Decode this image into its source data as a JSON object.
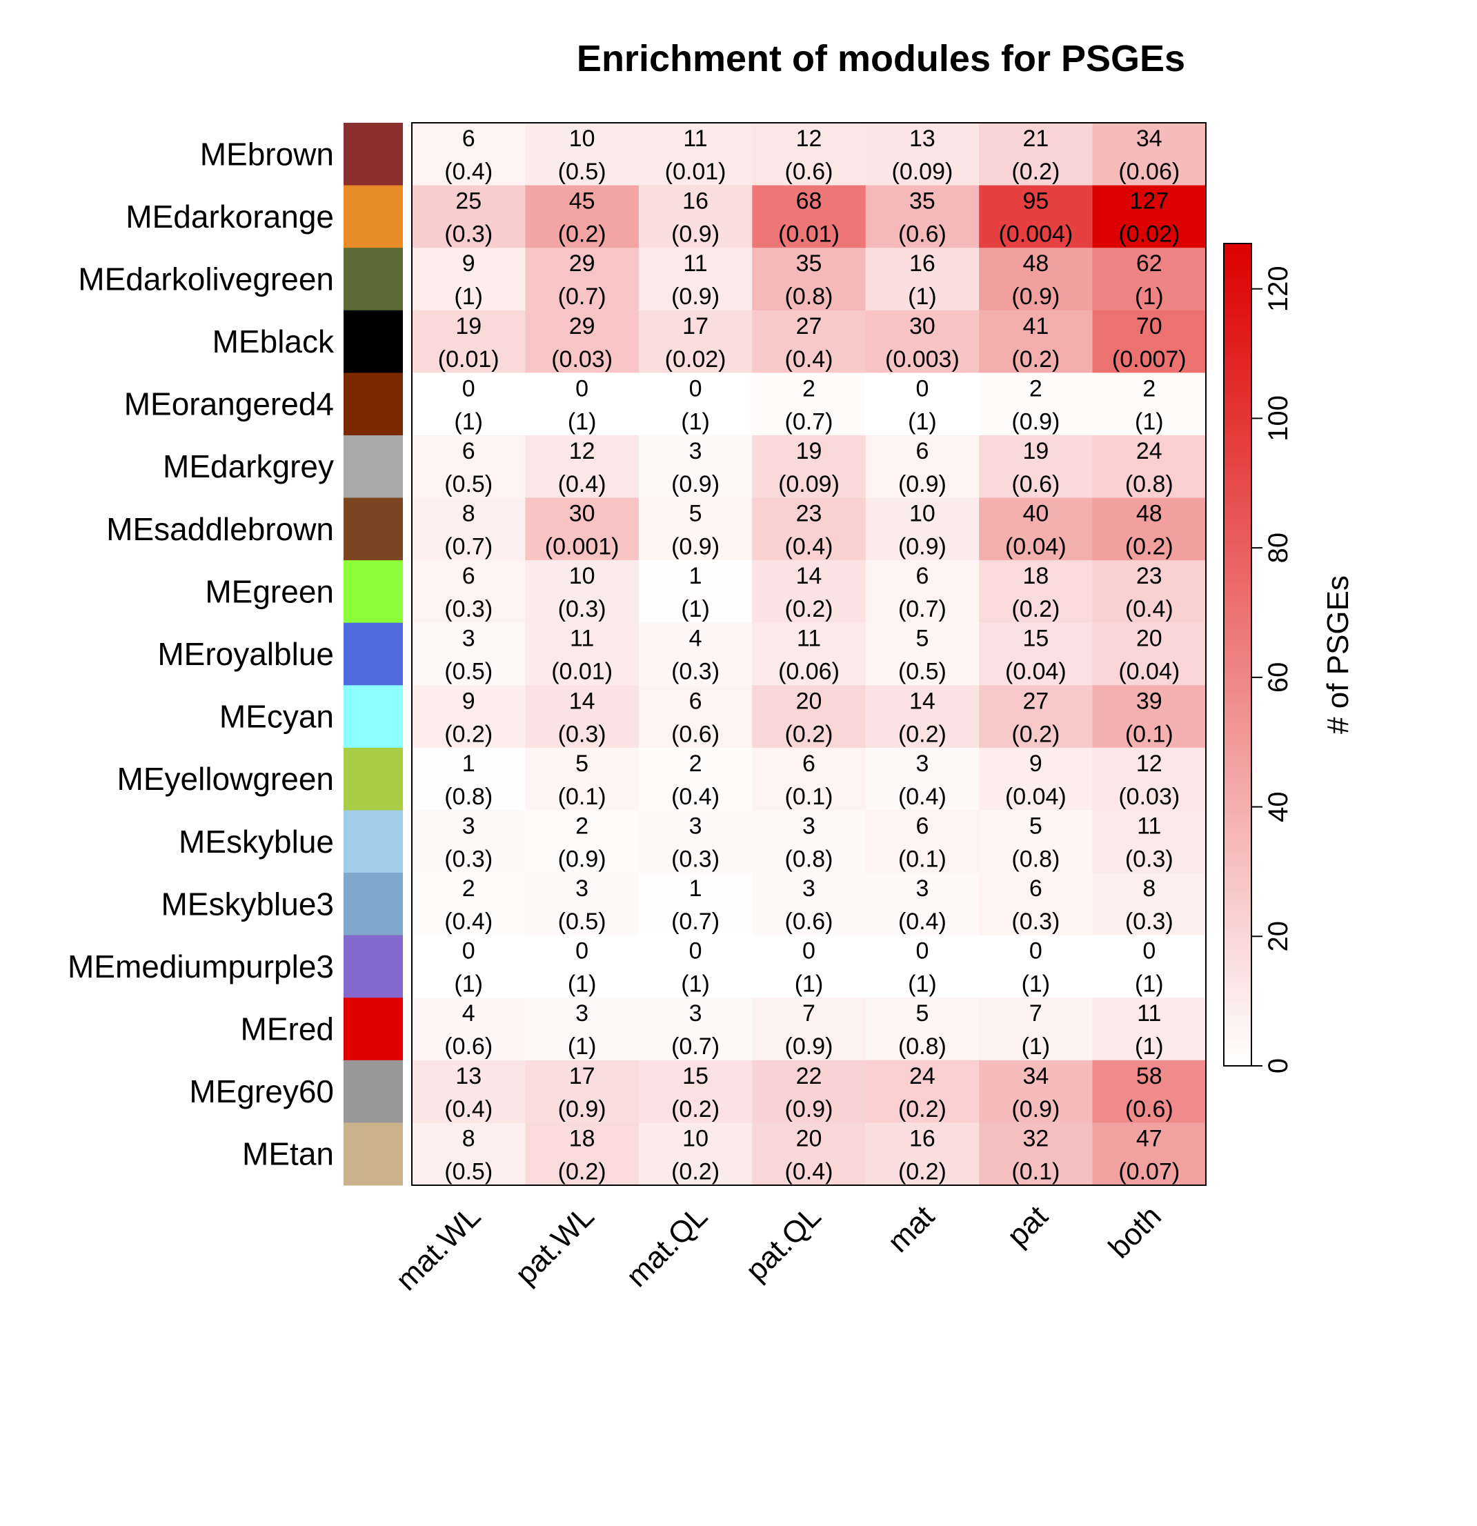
{
  "chart_data": {
    "type": "heatmap",
    "title": "Enrichment of modules for PSGEs",
    "columns": [
      "mat.WL",
      "pat.WL",
      "mat.QL",
      "pat.QL",
      "mat",
      "pat",
      "both"
    ],
    "rows": [
      {
        "name": "MEbrown",
        "color": "#8B2E2E",
        "counts": [
          6,
          10,
          11,
          12,
          13,
          21,
          34
        ],
        "pvalues": [
          "(0.4)",
          "(0.5)",
          "(0.01)",
          "(0.6)",
          "(0.09)",
          "(0.2)",
          "(0.06)"
        ]
      },
      {
        "name": "MEdarkorange",
        "color": "#E88B26",
        "counts": [
          25,
          45,
          16,
          68,
          35,
          95,
          127
        ],
        "pvalues": [
          "(0.3)",
          "(0.2)",
          "(0.9)",
          "(0.01)",
          "(0.6)",
          "(0.004)",
          "(0.02)"
        ]
      },
      {
        "name": "MEdarkolivegreen",
        "color": "#5A6B35",
        "counts": [
          9,
          29,
          11,
          35,
          16,
          48,
          62
        ],
        "pvalues": [
          "(1)",
          "(0.7)",
          "(0.9)",
          "(0.8)",
          "(1)",
          "(0.9)",
          "(1)"
        ]
      },
      {
        "name": "MEblack",
        "color": "#000000",
        "counts": [
          19,
          29,
          17,
          27,
          30,
          41,
          70
        ],
        "pvalues": [
          "(0.01)",
          "(0.03)",
          "(0.02)",
          "(0.4)",
          "(0.003)",
          "(0.2)",
          "(0.007)"
        ]
      },
      {
        "name": "MEorangered4",
        "color": "#7A2900",
        "counts": [
          0,
          0,
          0,
          2,
          0,
          2,
          2
        ],
        "pvalues": [
          "(1)",
          "(1)",
          "(1)",
          "(0.7)",
          "(1)",
          "(0.9)",
          "(1)"
        ]
      },
      {
        "name": "MEdarkgrey",
        "color": "#A8A8A8",
        "counts": [
          6,
          12,
          3,
          19,
          6,
          19,
          24
        ],
        "pvalues": [
          "(0.5)",
          "(0.4)",
          "(0.9)",
          "(0.09)",
          "(0.9)",
          "(0.6)",
          "(0.8)"
        ]
      },
      {
        "name": "MEsaddlebrown",
        "color": "#7A4520",
        "counts": [
          8,
          30,
          5,
          23,
          10,
          40,
          48
        ],
        "pvalues": [
          "(0.7)",
          "(0.001)",
          "(0.9)",
          "(0.4)",
          "(0.9)",
          "(0.04)",
          "(0.2)"
        ]
      },
      {
        "name": "MEgreen",
        "color": "#8CFF3A",
        "counts": [
          6,
          10,
          1,
          14,
          6,
          18,
          23
        ],
        "pvalues": [
          "(0.3)",
          "(0.3)",
          "(1)",
          "(0.2)",
          "(0.7)",
          "(0.2)",
          "(0.4)"
        ]
      },
      {
        "name": "MEroyalblue",
        "color": "#5069DD",
        "counts": [
          3,
          11,
          4,
          11,
          5,
          15,
          20
        ],
        "pvalues": [
          "(0.5)",
          "(0.01)",
          "(0.3)",
          "(0.06)",
          "(0.5)",
          "(0.04)",
          "(0.04)"
        ]
      },
      {
        "name": "MEcyan",
        "color": "#8CFFFF",
        "counts": [
          9,
          14,
          6,
          20,
          14,
          27,
          39
        ],
        "pvalues": [
          "(0.2)",
          "(0.3)",
          "(0.6)",
          "(0.2)",
          "(0.2)",
          "(0.2)",
          "(0.1)"
        ]
      },
      {
        "name": "MEyellowgreen",
        "color": "#A8CD45",
        "counts": [
          1,
          5,
          2,
          6,
          3,
          9,
          12
        ],
        "pvalues": [
          "(0.8)",
          "(0.1)",
          "(0.4)",
          "(0.1)",
          "(0.4)",
          "(0.04)",
          "(0.03)"
        ]
      },
      {
        "name": "MEskyblue",
        "color": "#A0CDE8",
        "counts": [
          3,
          2,
          3,
          3,
          6,
          5,
          11
        ],
        "pvalues": [
          "(0.3)",
          "(0.9)",
          "(0.3)",
          "(0.8)",
          "(0.1)",
          "(0.8)",
          "(0.3)"
        ]
      },
      {
        "name": "MEskyblue3",
        "color": "#7FA6CB",
        "counts": [
          2,
          3,
          1,
          3,
          3,
          6,
          8
        ],
        "pvalues": [
          "(0.4)",
          "(0.5)",
          "(0.7)",
          "(0.6)",
          "(0.4)",
          "(0.3)",
          "(0.3)"
        ]
      },
      {
        "name": "MEmediumpurple3",
        "color": "#8468CB",
        "counts": [
          0,
          0,
          0,
          0,
          0,
          0,
          0
        ],
        "pvalues": [
          "(1)",
          "(1)",
          "(1)",
          "(1)",
          "(1)",
          "(1)",
          "(1)"
        ]
      },
      {
        "name": "MEred",
        "color": "#E00000",
        "counts": [
          4,
          3,
          3,
          7,
          5,
          7,
          11
        ],
        "pvalues": [
          "(0.6)",
          "(1)",
          "(0.7)",
          "(0.9)",
          "(0.8)",
          "(1)",
          "(1)"
        ]
      },
      {
        "name": "MEgrey60",
        "color": "#999999",
        "counts": [
          13,
          17,
          15,
          22,
          24,
          34,
          58
        ],
        "pvalues": [
          "(0.4)",
          "(0.9)",
          "(0.2)",
          "(0.9)",
          "(0.2)",
          "(0.9)",
          "(0.6)"
        ]
      },
      {
        "name": "MEtan",
        "color": "#C9B28C",
        "counts": [
          8,
          18,
          10,
          20,
          16,
          32,
          47
        ],
        "pvalues": [
          "(0.5)",
          "(0.2)",
          "(0.2)",
          "(0.4)",
          "(0.2)",
          "(0.1)",
          "(0.07)"
        ]
      }
    ],
    "colorbar": {
      "title": "# of PSGEs",
      "ticks": [
        0,
        20,
        40,
        60,
        80,
        100,
        120
      ],
      "range": [
        0,
        127
      ],
      "low_color": "#FFFFFF",
      "high_color": "#DD0000"
    }
  }
}
